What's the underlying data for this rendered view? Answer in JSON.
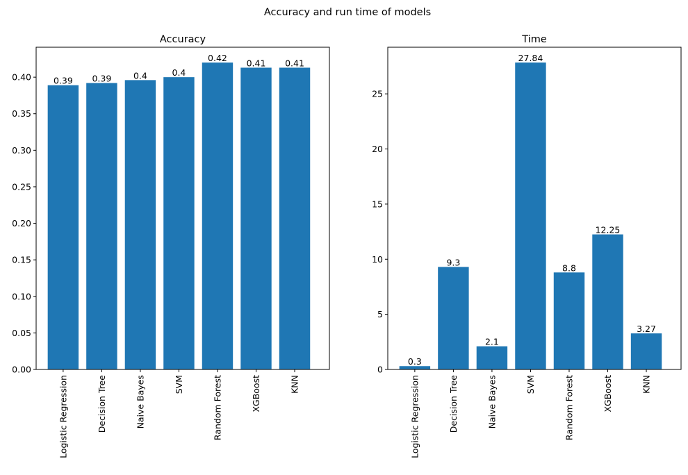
{
  "figure": {
    "title": "Accuracy and run time of models"
  },
  "colors": {
    "bar": "#1f77b4",
    "axis": "#000000"
  },
  "chart_data": [
    {
      "type": "bar",
      "title": "Accuracy",
      "xlabel": "",
      "ylabel": "",
      "categories": [
        "Logistic Regression",
        "Decision Tree",
        "Naive Bayes",
        "SVM",
        "Random Forest",
        "XGBoost",
        "KNN"
      ],
      "values": [
        0.389,
        0.392,
        0.396,
        0.4,
        0.42,
        0.413,
        0.413
      ],
      "data_labels": [
        "0.39",
        "0.39",
        "0.4",
        "0.4",
        "0.42",
        "0.41",
        "0.41"
      ],
      "ylim": [
        0,
        0.441
      ],
      "yticks": [
        "0.00",
        "0.05",
        "0.10",
        "0.15",
        "0.20",
        "0.25",
        "0.30",
        "0.35",
        "0.40"
      ],
      "ytick_values": [
        0,
        0.05,
        0.1,
        0.15,
        0.2,
        0.25,
        0.3,
        0.35,
        0.4
      ],
      "grid": false
    },
    {
      "type": "bar",
      "title": "Time",
      "xlabel": "",
      "ylabel": "",
      "categories": [
        "Logistic Regression",
        "Decision Tree",
        "Naive Bayes",
        "SVM",
        "Random Forest",
        "XGBoost",
        "KNN"
      ],
      "values": [
        0.3,
        9.3,
        2.1,
        27.84,
        8.8,
        12.25,
        3.27
      ],
      "data_labels": [
        "0.3",
        "9.3",
        "2.1",
        "27.84",
        "8.8",
        "12.25",
        "3.27"
      ],
      "ylim": [
        0,
        29.23
      ],
      "yticks": [
        "0",
        "5",
        "10",
        "15",
        "20",
        "25"
      ],
      "ytick_values": [
        0,
        5,
        10,
        15,
        20,
        25
      ],
      "grid": false
    }
  ]
}
